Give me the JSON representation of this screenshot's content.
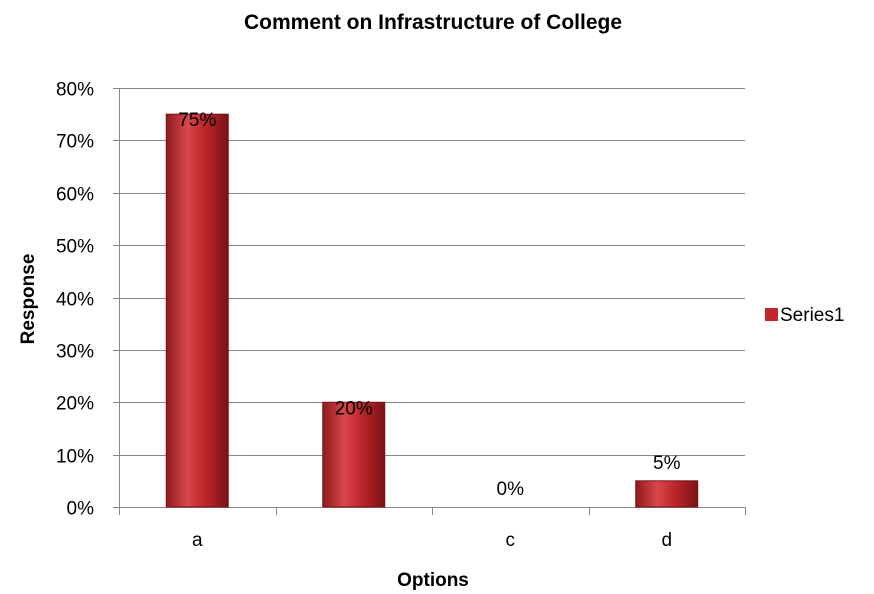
{
  "chart_data": {
    "type": "bar",
    "title": "Comment on Infrastructure of College",
    "xlabel": "Options",
    "ylabel": "Response",
    "categories": [
      "a",
      "",
      "c",
      "d"
    ],
    "series": [
      {
        "name": "Series1",
        "values": [
          0.75,
          0.2,
          0.0,
          0.05
        ]
      }
    ],
    "data_labels": [
      "75%",
      "20%",
      "0%",
      "5%"
    ],
    "ylim": [
      0,
      0.8
    ],
    "y_ticks": [
      0,
      0.1,
      0.2,
      0.3,
      0.4,
      0.5,
      0.6,
      0.7,
      0.8
    ],
    "y_tick_labels": [
      "0%",
      "10%",
      "20%",
      "30%",
      "40%",
      "50%",
      "60%",
      "70%",
      "80%"
    ],
    "grid": true,
    "legend_position": "right",
    "colors": {
      "bar": "#c0282d",
      "bar_light": "#e05a5e",
      "bar_dark": "#7a1216",
      "grid": "#878787"
    }
  }
}
